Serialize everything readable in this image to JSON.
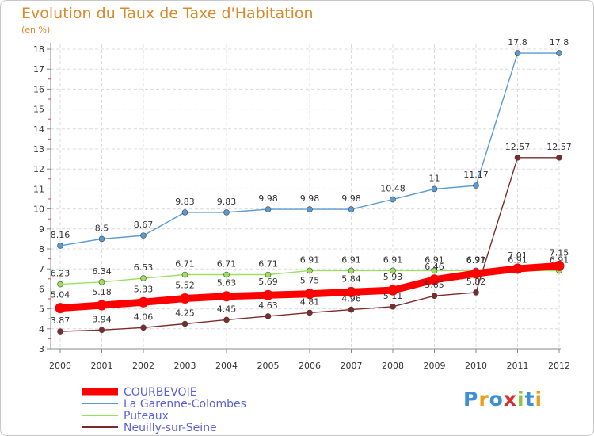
{
  "title": "Evolution du Taux de Taxe d'Habitation",
  "subtitle": "(en %)",
  "logo": {
    "text": "Proxiti",
    "colors": [
      "#3b8fd8",
      "#e8a020",
      "#3b8fd8",
      "#d63030",
      "#8cc63f",
      "#3b8fd8",
      "#e8a020"
    ]
  },
  "chart_data": {
    "type": "line",
    "x": [
      "2000",
      "2001",
      "2002",
      "2003",
      "2004",
      "2005",
      "2006",
      "2007",
      "2008",
      "2009",
      "2010",
      "2011",
      "2012"
    ],
    "ylim": [
      3,
      18
    ],
    "yticks": [
      "3",
      "4",
      "5",
      "6",
      "7",
      "8",
      "9",
      "10",
      "11",
      "12",
      "13",
      "14",
      "15",
      "16",
      "17",
      "18"
    ],
    "grid": true,
    "legend_position": "bottom-left",
    "series": [
      {
        "name": "COURBEVOIE",
        "color": "#ff0000",
        "values": [
          5.04,
          5.18,
          5.33,
          5.52,
          5.63,
          5.69,
          5.75,
          5.84,
          5.93,
          6.46,
          6.77,
          7.01,
          7.15
        ],
        "labels": [
          "5.04",
          "5.18",
          "5.33",
          "5.52",
          "5.63",
          "5.69",
          "5.75",
          "5.84",
          "5.93",
          "6.46",
          "6.77",
          "7.01",
          "7.15"
        ]
      },
      {
        "name": "La Garenne-Colombes",
        "color": "#5a9ad2",
        "values": [
          8.16,
          8.5,
          8.67,
          9.83,
          9.83,
          9.98,
          9.98,
          9.98,
          10.48,
          11,
          11.17,
          17.8,
          17.8
        ],
        "labels": [
          "8.16",
          "8.5",
          "8.67",
          "9.83",
          "9.83",
          "9.98",
          "9.98",
          "9.98",
          "10.48",
          "11",
          "11.17",
          "17.8",
          "17.8"
        ]
      },
      {
        "name": "Puteaux",
        "color": "#99e15a",
        "values": [
          6.23,
          6.34,
          6.53,
          6.71,
          6.71,
          6.71,
          6.91,
          6.91,
          6.91,
          6.91,
          6.91,
          6.91,
          6.91
        ],
        "labels": [
          "6.23",
          "6.34",
          "6.53",
          "6.71",
          "6.71",
          "6.71",
          "6.91",
          "6.91",
          "6.91",
          "6.91",
          "6.91",
          "6.91",
          "6.91"
        ]
      },
      {
        "name": "Neuilly-sur-Seine",
        "color": "#7d2a2a",
        "values": [
          3.87,
          3.94,
          4.06,
          4.25,
          4.45,
          4.63,
          4.81,
          4.96,
          5.11,
          5.65,
          5.82,
          12.57,
          12.57
        ],
        "labels": [
          "3.87",
          "3.94",
          "4.06",
          "4.25",
          "4.45",
          "4.63",
          "4.81",
          "4.96",
          "5.11",
          "5.65",
          "5.82",
          "12.57",
          "12.57"
        ]
      }
    ]
  }
}
